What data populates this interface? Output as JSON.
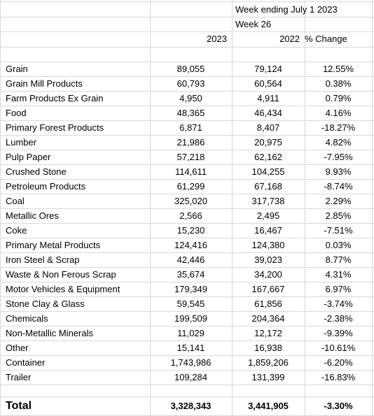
{
  "header": {
    "week_ending": "Week ending July 1 2023",
    "week_number": "Week 26",
    "col_2023": "2023",
    "col_2022": "2022",
    "col_change": "% Change"
  },
  "rows": [
    {
      "label": "Grain",
      "y2023": "89,055",
      "y2022": "79,124",
      "change": "12.55%"
    },
    {
      "label": "Grain Mill Products",
      "y2023": "60,793",
      "y2022": "60,564",
      "change": "0.38%"
    },
    {
      "label": "Farm Products Ex Grain",
      "y2023": "4,950",
      "y2022": "4,911",
      "change": "0.79%"
    },
    {
      "label": "Food",
      "y2023": "48,365",
      "y2022": "46,434",
      "change": "4.16%"
    },
    {
      "label": "Primary Forest Products",
      "y2023": "6,871",
      "y2022": "8,407",
      "change": "-18.27%"
    },
    {
      "label": "Lumber",
      "y2023": "21,986",
      "y2022": "20,975",
      "change": "4.82%"
    },
    {
      "label": "Pulp Paper",
      "y2023": "57,218",
      "y2022": "62,162",
      "change": "-7.95%"
    },
    {
      "label": "Crushed Stone",
      "y2023": "114,611",
      "y2022": "104,255",
      "change": "9.93%"
    },
    {
      "label": "Petroleum Products",
      "y2023": "61,299",
      "y2022": "67,168",
      "change": "-8.74%"
    },
    {
      "label": "Coal",
      "y2023": "325,020",
      "y2022": "317,738",
      "change": "2.29%"
    },
    {
      "label": "Metallic Ores",
      "y2023": "2,566",
      "y2022": "2,495",
      "change": "2.85%"
    },
    {
      "label": "Coke",
      "y2023": "15,230",
      "y2022": "16,467",
      "change": "-7.51%"
    },
    {
      "label": "Primary Metal Products",
      "y2023": "124,416",
      "y2022": "124,380",
      "change": "0.03%"
    },
    {
      "label": "Iron Steel & Scrap",
      "y2023": "42,446",
      "y2022": "39,023",
      "change": "8.77%"
    },
    {
      "label": "Waste & Non Ferous Scrap",
      "y2023": "35,674",
      "y2022": "34,200",
      "change": "4.31%"
    },
    {
      "label": "Motor Vehicles & Equipment",
      "y2023": "179,349",
      "y2022": "167,667",
      "change": "6.97%"
    },
    {
      "label": "Stone Clay & Glass",
      "y2023": "59,545",
      "y2022": "61,856",
      "change": "-3.74%"
    },
    {
      "label": "Chemicals",
      "y2023": "199,509",
      "y2022": "204,364",
      "change": "-2.38%"
    },
    {
      "label": "Non-Metallic Minerals",
      "y2023": "11,029",
      "y2022": "12,172",
      "change": "-9.39%"
    },
    {
      "label": "Other",
      "y2023": "15,141",
      "y2022": "16,938",
      "change": "-10.61%"
    },
    {
      "label": "Container",
      "y2023": "1,743,986",
      "y2022": "1,859,206",
      "change": "-6.20%"
    },
    {
      "label": "Trailer",
      "y2023": "109,284",
      "y2022": "131,399",
      "change": "-16.83%"
    }
  ],
  "total": {
    "label": "Total",
    "y2023": "3,328,343",
    "y2022": "3,441,905",
    "change": "-3.30%"
  }
}
